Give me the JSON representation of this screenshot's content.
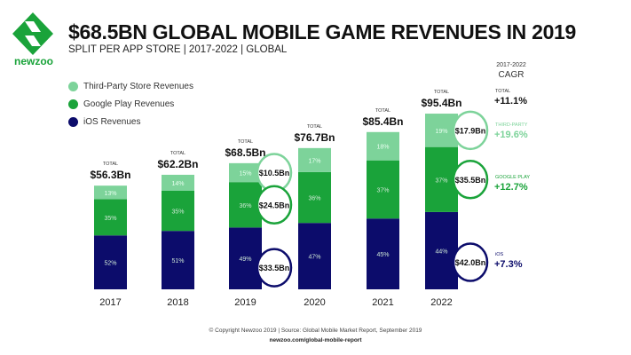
{
  "header": {
    "title": "$68.5BN GLOBAL MOBILE GAME REVENUES IN 2019",
    "subtitle": "SPLIT PER APP STORE | 2017-2022 | GLOBAL",
    "logo": "newzoo"
  },
  "legend": [
    {
      "label": "Third-Party Store Revenues",
      "color": "#7dd39a"
    },
    {
      "label": "Google Play Revenues",
      "color": "#1aa33a"
    },
    {
      "label": "iOS Revenues",
      "color": "#0c0c6b"
    }
  ],
  "cagr": {
    "period": "2017-2022",
    "heading": "CAGR",
    "items": [
      {
        "label": "TOTAL",
        "value": "+11.1%",
        "color": "#111111"
      },
      {
        "label": "THIRD-PARTY",
        "value": "+19.6%",
        "color": "#7dd39a"
      },
      {
        "label": "GOOGLE PLAY",
        "value": "+12.7%",
        "color": "#1aa33a"
      },
      {
        "label": "iOS",
        "value": "+7.3%",
        "color": "#0c0c6b"
      }
    ]
  },
  "chart_data": {
    "type": "bar",
    "stacked": true,
    "title": "$68.5BN GLOBAL MOBILE GAME REVENUES IN 2019",
    "categories": [
      "2017",
      "2018",
      "2019",
      "2020",
      "2021",
      "2022"
    ],
    "totals": [
      56.3,
      62.2,
      68.5,
      76.7,
      85.4,
      95.4
    ],
    "total_label": "TOTAL",
    "total_labels": [
      "$56.3Bn",
      "$62.2Bn",
      "$68.5Bn",
      "$76.7Bn",
      "$85.4Bn",
      "$95.4Bn"
    ],
    "series": [
      {
        "name": "iOS Revenues",
        "color": "#0c0c6b",
        "percent": [
          52,
          51,
          49,
          47,
          45,
          44
        ]
      },
      {
        "name": "Google Play Revenues",
        "color": "#1aa33a",
        "percent": [
          35,
          35,
          36,
          36,
          37,
          37
        ]
      },
      {
        "name": "Third-Party Store Revenues",
        "color": "#7dd39a",
        "percent": [
          13,
          14,
          15,
          17,
          18,
          19
        ]
      }
    ],
    "callouts": [
      {
        "year": "2019",
        "series": "Third-Party Store Revenues",
        "label": "$10.5Bn"
      },
      {
        "year": "2019",
        "series": "Google Play Revenues",
        "label": "$24.5Bn"
      },
      {
        "year": "2019",
        "series": "iOS Revenues",
        "label": "$33.5Bn"
      },
      {
        "year": "2022",
        "series": "Third-Party Store Revenues",
        "label": "$17.9Bn"
      },
      {
        "year": "2022",
        "series": "Google Play Revenues",
        "label": "$35.5Bn"
      },
      {
        "year": "2022",
        "series": "iOS Revenues",
        "label": "$42.0Bn"
      }
    ]
  },
  "footer": {
    "copyright": "© Copyright Newzoo 2019 | Source: Global Mobile Market Report, September 2019",
    "url": "newzoo.com/global-mobile-report"
  }
}
